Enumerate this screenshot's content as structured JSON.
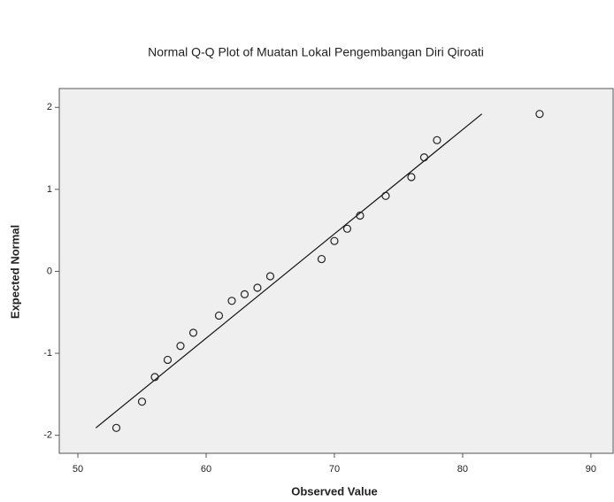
{
  "chart_data": {
    "type": "scatter",
    "title": "Normal Q-Q Plot of Muatan Lokal Pengembangan Diri Qiroati",
    "x_label": "Observed Value",
    "y_label": "Expected Normal",
    "x": [
      53,
      55,
      56,
      57,
      58,
      59,
      61,
      62,
      63,
      64,
      65,
      69,
      70,
      71,
      72,
      74,
      76,
      77,
      78,
      86
    ],
    "values": [
      -1.91,
      -1.59,
      -1.29,
      -1.08,
      -0.91,
      -0.75,
      -0.54,
      -0.36,
      -0.28,
      -0.2,
      -0.06,
      0.15,
      0.37,
      0.52,
      0.68,
      0.92,
      1.15,
      1.39,
      1.6,
      1.92
    ],
    "color": "#222222",
    "reference_line": {
      "x": [
        51.4,
        81.5
      ],
      "y": [
        -1.91,
        1.92
      ]
    },
    "xlim": [
      48.55,
      91.8
    ],
    "ylim": [
      -2.22,
      2.23
    ],
    "xticks": [
      50,
      60,
      70,
      80,
      90
    ],
    "yticks": [
      -2,
      -1,
      0,
      1,
      2
    ]
  }
}
